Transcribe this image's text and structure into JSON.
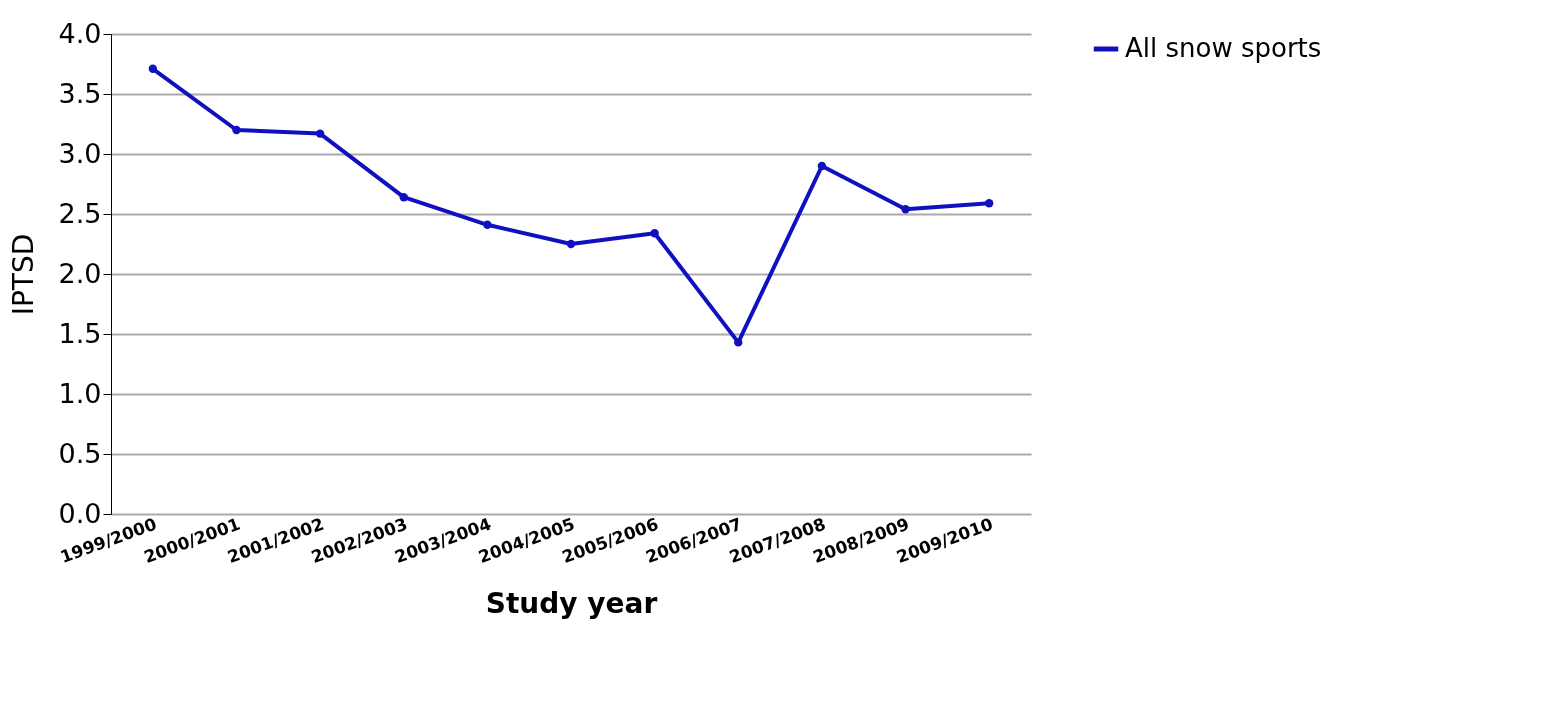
{
  "chart_data": {
    "type": "line",
    "xlabel": "Study year",
    "ylabel": "IPTSD",
    "categories": [
      "1999/2000",
      "2000/2001",
      "2001/2002",
      "2002/2003",
      "2003/2004",
      "2004/2005",
      "2005/2006",
      "2006/2007",
      "2007/2008",
      "2008/2009",
      "2009/2010"
    ],
    "series": [
      {
        "name": "All snow sports",
        "color": "#1010c0",
        "values": [
          3.71,
          3.2,
          3.17,
          2.64,
          2.41,
          2.25,
          2.34,
          1.43,
          2.9,
          2.54,
          2.59
        ]
      }
    ],
    "ylim": [
      0,
      4
    ],
    "yticks": [
      {
        "value": 0,
        "label": "0.0"
      },
      {
        "value": 0.5,
        "label": "0.5"
      },
      {
        "value": 1,
        "label": "1.0"
      },
      {
        "value": 1.5,
        "label": "1.5"
      },
      {
        "value": 2,
        "label": "2.0"
      },
      {
        "value": 2.5,
        "label": "2.5"
      },
      {
        "value": 3,
        "label": "3.0"
      },
      {
        "value": 3.5,
        "label": "3.5"
      },
      {
        "value": 4,
        "label": "4.0"
      }
    ],
    "grid": "y",
    "legend": "right",
    "marker": "circle"
  }
}
